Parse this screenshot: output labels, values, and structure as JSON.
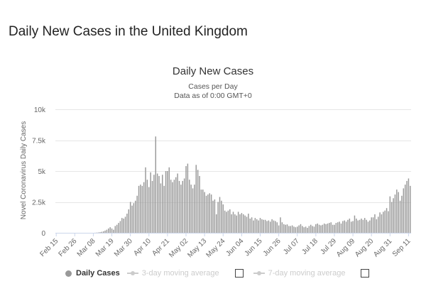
{
  "page_title": "Daily New Cases in the United Kingdom",
  "chart_data": {
    "type": "bar",
    "title": "Daily New Cases",
    "subtitle_line1": "Cases per Day",
    "subtitle_line2": "Data as of 0:00 GMT+0",
    "ylabel": "Novel Coronavirus Daily Cases",
    "xlabel": "",
    "ylim": [
      0,
      10000
    ],
    "y_ticks": [
      "0",
      "2.5k",
      "5k",
      "7.5k",
      "10k"
    ],
    "y_tick_values": [
      0,
      2500,
      5000,
      7500,
      10000
    ],
    "x_tick_labels": [
      "Feb 15",
      "Feb 26",
      "Mar 08",
      "Mar 19",
      "Mar 30",
      "Apr 10",
      "Apr 21",
      "May 02",
      "May 13",
      "May 24",
      "Jun 04",
      "Jun 15",
      "Jun 26",
      "Jul 07",
      "Jul 18",
      "Jul 29",
      "Aug 09",
      "Aug 20",
      "Aug 31",
      "Sep 11"
    ],
    "x_tick_every_days": 11,
    "grid": "horizontal",
    "bar_color": "#999999",
    "series": [
      {
        "name": "Daily Cases",
        "values": [
          0,
          0,
          0,
          0,
          0,
          0,
          0,
          0,
          0,
          0,
          0,
          0,
          0,
          0,
          0,
          0,
          0,
          0,
          0,
          0,
          0,
          0,
          0,
          5,
          15,
          30,
          50,
          80,
          120,
          180,
          250,
          350,
          450,
          350,
          250,
          550,
          650,
          800,
          950,
          1200,
          1150,
          1300,
          1550,
          1900,
          2500,
          2200,
          2400,
          2600,
          3000,
          3800,
          3900,
          3800,
          4100,
          5300,
          4300,
          3700,
          4900,
          4200,
          4700,
          7800,
          4800,
          4600,
          4000,
          4700,
          3800,
          5000,
          5000,
          5300,
          4300,
          4100,
          4300,
          4500,
          4800,
          4200,
          3900,
          4200,
          4400,
          5400,
          5600,
          4300,
          3900,
          3600,
          3900,
          5500,
          5100,
          4600,
          3500,
          3500,
          3300,
          3000,
          3100,
          3200,
          3100,
          2600,
          2700,
          1500,
          2500,
          2900,
          2600,
          2300,
          1800,
          1700,
          1800,
          1900,
          1500,
          1700,
          1500,
          1400,
          1700,
          1500,
          1600,
          1500,
          1400,
          1300,
          1550,
          1150,
          1250,
          1000,
          1200,
          1100,
          1000,
          1200,
          1100,
          1050,
          1050,
          950,
          1000,
          900,
          1100,
          1000,
          950,
          850,
          600,
          1250,
          850,
          700,
          650,
          680,
          550,
          550,
          600,
          500,
          450,
          500,
          600,
          700,
          550,
          450,
          500,
          400,
          550,
          650,
          550,
          500,
          700,
          750,
          650,
          600,
          650,
          750,
          700,
          750,
          800,
          850,
          650,
          650,
          800,
          850,
          900,
          750,
          950,
          1000,
          900,
          1050,
          1150,
          900,
          950,
          1400,
          1150,
          1000,
          1050,
          1150,
          1050,
          1200,
          1050,
          900,
          1000,
          1250,
          1250,
          1500,
          1100,
          1300,
          1650,
          1500,
          1700,
          1800,
          2000,
          1750,
          2950,
          2500,
          2800,
          3100,
          3500,
          3300,
          2600,
          3000,
          3600,
          3900,
          4200,
          4400,
          3800
        ]
      }
    ],
    "legend": {
      "position": "bottom",
      "items": [
        {
          "label": "Daily Cases",
          "active": true
        },
        {
          "label": "3-day moving average",
          "active": false
        },
        {
          "label": "7-day moving average",
          "active": false
        }
      ]
    }
  }
}
